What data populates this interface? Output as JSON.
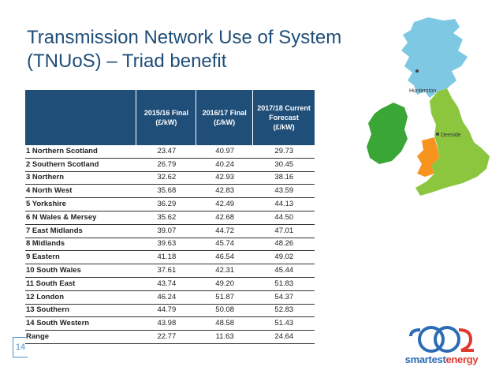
{
  "slide": {
    "title_line1": "Transmission Network Use of System",
    "title_line2": "(TNUoS) – Triad benefit",
    "page_number": "14"
  },
  "table": {
    "headers": [
      {
        "line1": "2015/16 Final",
        "line2": "(£/kW)",
        "line3": ""
      },
      {
        "line1": "2016/17 Final",
        "line2": "(£/kW)",
        "line3": ""
      },
      {
        "line1": "2017/18 Current",
        "line2": "Forecast",
        "line3": "(£/kW)"
      }
    ],
    "rows": [
      {
        "region": "1 Northern Scotland",
        "v1": "23.47",
        "v2": "40.97",
        "v3": "29.73"
      },
      {
        "region": "2 Southern Scotland",
        "v1": "26.79",
        "v2": "40.24",
        "v3": "30.45"
      },
      {
        "region": "3 Northern",
        "v1": "32.62",
        "v2": "42.93",
        "v3": "38.16"
      },
      {
        "region": "4 North West",
        "v1": "35.68",
        "v2": "42.83",
        "v3": "43.59"
      },
      {
        "region": "5 Yorkshire",
        "v1": "36.29",
        "v2": "42.49",
        "v3": "44.13"
      },
      {
        "region": "6 N Wales & Mersey",
        "v1": "35.62",
        "v2": "42.68",
        "v3": "44.50"
      },
      {
        "region": "7 East Midlands",
        "v1": "39.07",
        "v2": "44.72",
        "v3": "47.01"
      },
      {
        "region": "8 Midlands",
        "v1": "39.63",
        "v2": "45.74",
        "v3": "48.26"
      },
      {
        "region": "9 Eastern",
        "v1": "41.18",
        "v2": "46.54",
        "v3": "49.02"
      },
      {
        "region": "10 South Wales",
        "v1": "37.61",
        "v2": "42.31",
        "v3": "45.44"
      },
      {
        "region": "11 South East",
        "v1": "43.74",
        "v2": "49.20",
        "v3": "51.83"
      },
      {
        "region": "12 London",
        "v1": "46.24",
        "v2": "51.87",
        "v3": "54.37"
      },
      {
        "region": "13 Southern",
        "v1": "44.79",
        "v2": "50.08",
        "v3": "52.83"
      },
      {
        "region": "14 South Western",
        "v1": "43.98",
        "v2": "48.58",
        "v3": "51.43"
      },
      {
        "region": "Range",
        "v1": "22.77",
        "v2": "11.63",
        "v3": "24.64"
      }
    ]
  },
  "map": {
    "label_north": "Hunterston",
    "label_south": "Deeside",
    "colors": {
      "scotland": "#7ec8e3",
      "england_wales_green": "#8cc63f",
      "wales_orange": "#f7941d",
      "ireland": "#3aa635"
    }
  },
  "logo": {
    "text_main": "smartest",
    "text_accent": "energy",
    "colors": {
      "blue": "#2b6cb5",
      "red": "#e03a2f"
    }
  }
}
